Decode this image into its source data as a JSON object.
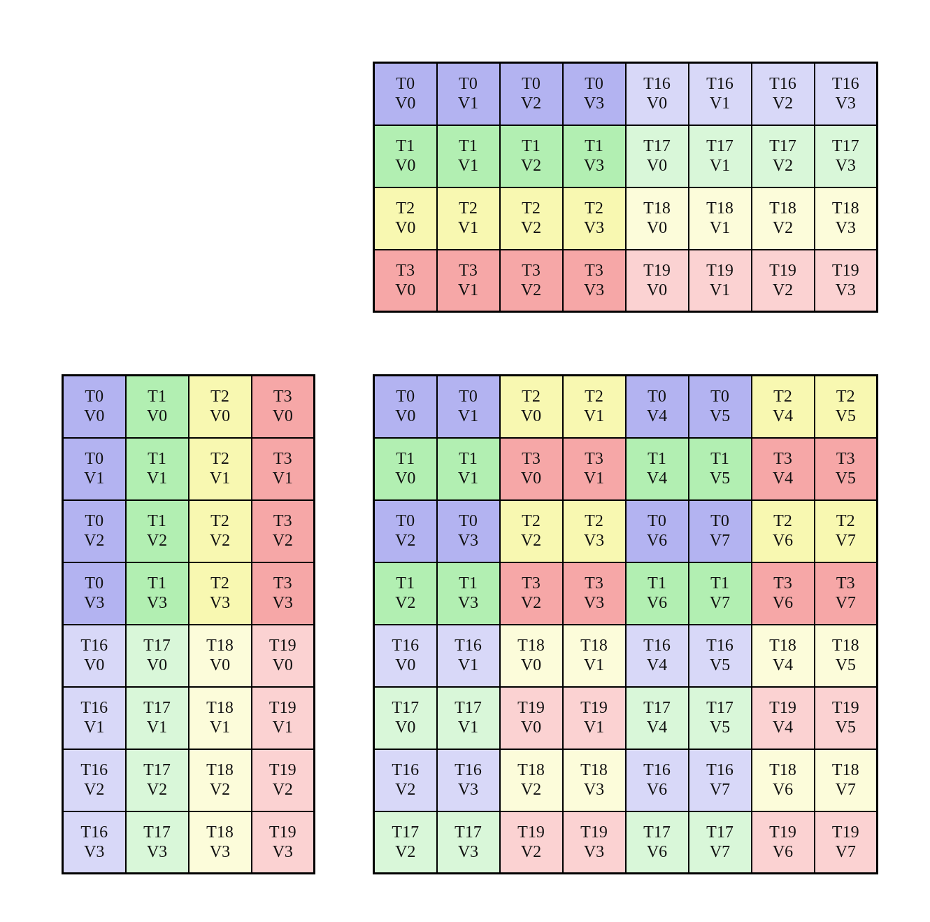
{
  "figure": {
    "description": "Three thread-value mapping grids",
    "background": "#ffffff",
    "border_color": "#000000",
    "text_color": "#111111"
  },
  "palette": {
    "blue": "#b3b3f1",
    "blueLight": "#d8d8f8",
    "green": "#b2efb2",
    "greenLight": "#d9f7d9",
    "yellow": "#f8f8b1",
    "yellowLight": "#fcfcda",
    "red": "#f6a7a7",
    "redLight": "#fbd2d2"
  },
  "grids": [
    {
      "name": "top-grid",
      "rows": 4,
      "cols": 8,
      "cells": [
        [
          [
            "T0",
            "V0",
            "blue"
          ],
          [
            "T0",
            "V1",
            "blue"
          ],
          [
            "T0",
            "V2",
            "blue"
          ],
          [
            "T0",
            "V3",
            "blue"
          ],
          [
            "T16",
            "V0",
            "blueLight"
          ],
          [
            "T16",
            "V1",
            "blueLight"
          ],
          [
            "T16",
            "V2",
            "blueLight"
          ],
          [
            "T16",
            "V3",
            "blueLight"
          ]
        ],
        [
          [
            "T1",
            "V0",
            "green"
          ],
          [
            "T1",
            "V1",
            "green"
          ],
          [
            "T1",
            "V2",
            "green"
          ],
          [
            "T1",
            "V3",
            "green"
          ],
          [
            "T17",
            "V0",
            "greenLight"
          ],
          [
            "T17",
            "V1",
            "greenLight"
          ],
          [
            "T17",
            "V2",
            "greenLight"
          ],
          [
            "T17",
            "V3",
            "greenLight"
          ]
        ],
        [
          [
            "T2",
            "V0",
            "yellow"
          ],
          [
            "T2",
            "V1",
            "yellow"
          ],
          [
            "T2",
            "V2",
            "yellow"
          ],
          [
            "T2",
            "V3",
            "yellow"
          ],
          [
            "T18",
            "V0",
            "yellowLight"
          ],
          [
            "T18",
            "V1",
            "yellowLight"
          ],
          [
            "T18",
            "V2",
            "yellowLight"
          ],
          [
            "T18",
            "V3",
            "yellowLight"
          ]
        ],
        [
          [
            "T3",
            "V0",
            "red"
          ],
          [
            "T3",
            "V1",
            "red"
          ],
          [
            "T3",
            "V2",
            "red"
          ],
          [
            "T3",
            "V3",
            "red"
          ],
          [
            "T19",
            "V0",
            "redLight"
          ],
          [
            "T19",
            "V1",
            "redLight"
          ],
          [
            "T19",
            "V2",
            "redLight"
          ],
          [
            "T19",
            "V3",
            "redLight"
          ]
        ]
      ]
    },
    {
      "name": "bottom-left-grid",
      "rows": 8,
      "cols": 4,
      "cells": [
        [
          [
            "T0",
            "V0",
            "blue"
          ],
          [
            "T1",
            "V0",
            "green"
          ],
          [
            "T2",
            "V0",
            "yellow"
          ],
          [
            "T3",
            "V0",
            "red"
          ]
        ],
        [
          [
            "T0",
            "V1",
            "blue"
          ],
          [
            "T1",
            "V1",
            "green"
          ],
          [
            "T2",
            "V1",
            "yellow"
          ],
          [
            "T3",
            "V1",
            "red"
          ]
        ],
        [
          [
            "T0",
            "V2",
            "blue"
          ],
          [
            "T1",
            "V2",
            "green"
          ],
          [
            "T2",
            "V2",
            "yellow"
          ],
          [
            "T3",
            "V2",
            "red"
          ]
        ],
        [
          [
            "T0",
            "V3",
            "blue"
          ],
          [
            "T1",
            "V3",
            "green"
          ],
          [
            "T2",
            "V3",
            "yellow"
          ],
          [
            "T3",
            "V3",
            "red"
          ]
        ],
        [
          [
            "T16",
            "V0",
            "blueLight"
          ],
          [
            "T17",
            "V0",
            "greenLight"
          ],
          [
            "T18",
            "V0",
            "yellowLight"
          ],
          [
            "T19",
            "V0",
            "redLight"
          ]
        ],
        [
          [
            "T16",
            "V1",
            "blueLight"
          ],
          [
            "T17",
            "V1",
            "greenLight"
          ],
          [
            "T18",
            "V1",
            "yellowLight"
          ],
          [
            "T19",
            "V1",
            "redLight"
          ]
        ],
        [
          [
            "T16",
            "V2",
            "blueLight"
          ],
          [
            "T17",
            "V2",
            "greenLight"
          ],
          [
            "T18",
            "V2",
            "yellowLight"
          ],
          [
            "T19",
            "V2",
            "redLight"
          ]
        ],
        [
          [
            "T16",
            "V3",
            "blueLight"
          ],
          [
            "T17",
            "V3",
            "greenLight"
          ],
          [
            "T18",
            "V3",
            "yellowLight"
          ],
          [
            "T19",
            "V3",
            "redLight"
          ]
        ]
      ]
    },
    {
      "name": "bottom-right-grid",
      "rows": 8,
      "cols": 8,
      "cells": [
        [
          [
            "T0",
            "V0",
            "blue"
          ],
          [
            "T0",
            "V1",
            "blue"
          ],
          [
            "T2",
            "V0",
            "yellow"
          ],
          [
            "T2",
            "V1",
            "yellow"
          ],
          [
            "T0",
            "V4",
            "blue"
          ],
          [
            "T0",
            "V5",
            "blue"
          ],
          [
            "T2",
            "V4",
            "yellow"
          ],
          [
            "T2",
            "V5",
            "yellow"
          ]
        ],
        [
          [
            "T1",
            "V0",
            "green"
          ],
          [
            "T1",
            "V1",
            "green"
          ],
          [
            "T3",
            "V0",
            "red"
          ],
          [
            "T3",
            "V1",
            "red"
          ],
          [
            "T1",
            "V4",
            "green"
          ],
          [
            "T1",
            "V5",
            "green"
          ],
          [
            "T3",
            "V4",
            "red"
          ],
          [
            "T3",
            "V5",
            "red"
          ]
        ],
        [
          [
            "T0",
            "V2",
            "blue"
          ],
          [
            "T0",
            "V3",
            "blue"
          ],
          [
            "T2",
            "V2",
            "yellow"
          ],
          [
            "T2",
            "V3",
            "yellow"
          ],
          [
            "T0",
            "V6",
            "blue"
          ],
          [
            "T0",
            "V7",
            "blue"
          ],
          [
            "T2",
            "V6",
            "yellow"
          ],
          [
            "T2",
            "V7",
            "yellow"
          ]
        ],
        [
          [
            "T1",
            "V2",
            "green"
          ],
          [
            "T1",
            "V3",
            "green"
          ],
          [
            "T3",
            "V2",
            "red"
          ],
          [
            "T3",
            "V3",
            "red"
          ],
          [
            "T1",
            "V6",
            "green"
          ],
          [
            "T1",
            "V7",
            "green"
          ],
          [
            "T3",
            "V6",
            "red"
          ],
          [
            "T3",
            "V7",
            "red"
          ]
        ],
        [
          [
            "T16",
            "V0",
            "blueLight"
          ],
          [
            "T16",
            "V1",
            "blueLight"
          ],
          [
            "T18",
            "V0",
            "yellowLight"
          ],
          [
            "T18",
            "V1",
            "yellowLight"
          ],
          [
            "T16",
            "V4",
            "blueLight"
          ],
          [
            "T16",
            "V5",
            "blueLight"
          ],
          [
            "T18",
            "V4",
            "yellowLight"
          ],
          [
            "T18",
            "V5",
            "yellowLight"
          ]
        ],
        [
          [
            "T17",
            "V0",
            "greenLight"
          ],
          [
            "T17",
            "V1",
            "greenLight"
          ],
          [
            "T19",
            "V0",
            "redLight"
          ],
          [
            "T19",
            "V1",
            "redLight"
          ],
          [
            "T17",
            "V4",
            "greenLight"
          ],
          [
            "T17",
            "V5",
            "greenLight"
          ],
          [
            "T19",
            "V4",
            "redLight"
          ],
          [
            "T19",
            "V5",
            "redLight"
          ]
        ],
        [
          [
            "T16",
            "V2",
            "blueLight"
          ],
          [
            "T16",
            "V3",
            "blueLight"
          ],
          [
            "T18",
            "V2",
            "yellowLight"
          ],
          [
            "T18",
            "V3",
            "yellowLight"
          ],
          [
            "T16",
            "V6",
            "blueLight"
          ],
          [
            "T16",
            "V7",
            "blueLight"
          ],
          [
            "T18",
            "V6",
            "yellowLight"
          ],
          [
            "T18",
            "V7",
            "yellowLight"
          ]
        ],
        [
          [
            "T17",
            "V2",
            "greenLight"
          ],
          [
            "T17",
            "V3",
            "greenLight"
          ],
          [
            "T19",
            "V2",
            "redLight"
          ],
          [
            "T19",
            "V3",
            "redLight"
          ],
          [
            "T17",
            "V6",
            "greenLight"
          ],
          [
            "T17",
            "V7",
            "greenLight"
          ],
          [
            "T19",
            "V6",
            "redLight"
          ],
          [
            "T19",
            "V7",
            "redLight"
          ]
        ]
      ]
    }
  ]
}
